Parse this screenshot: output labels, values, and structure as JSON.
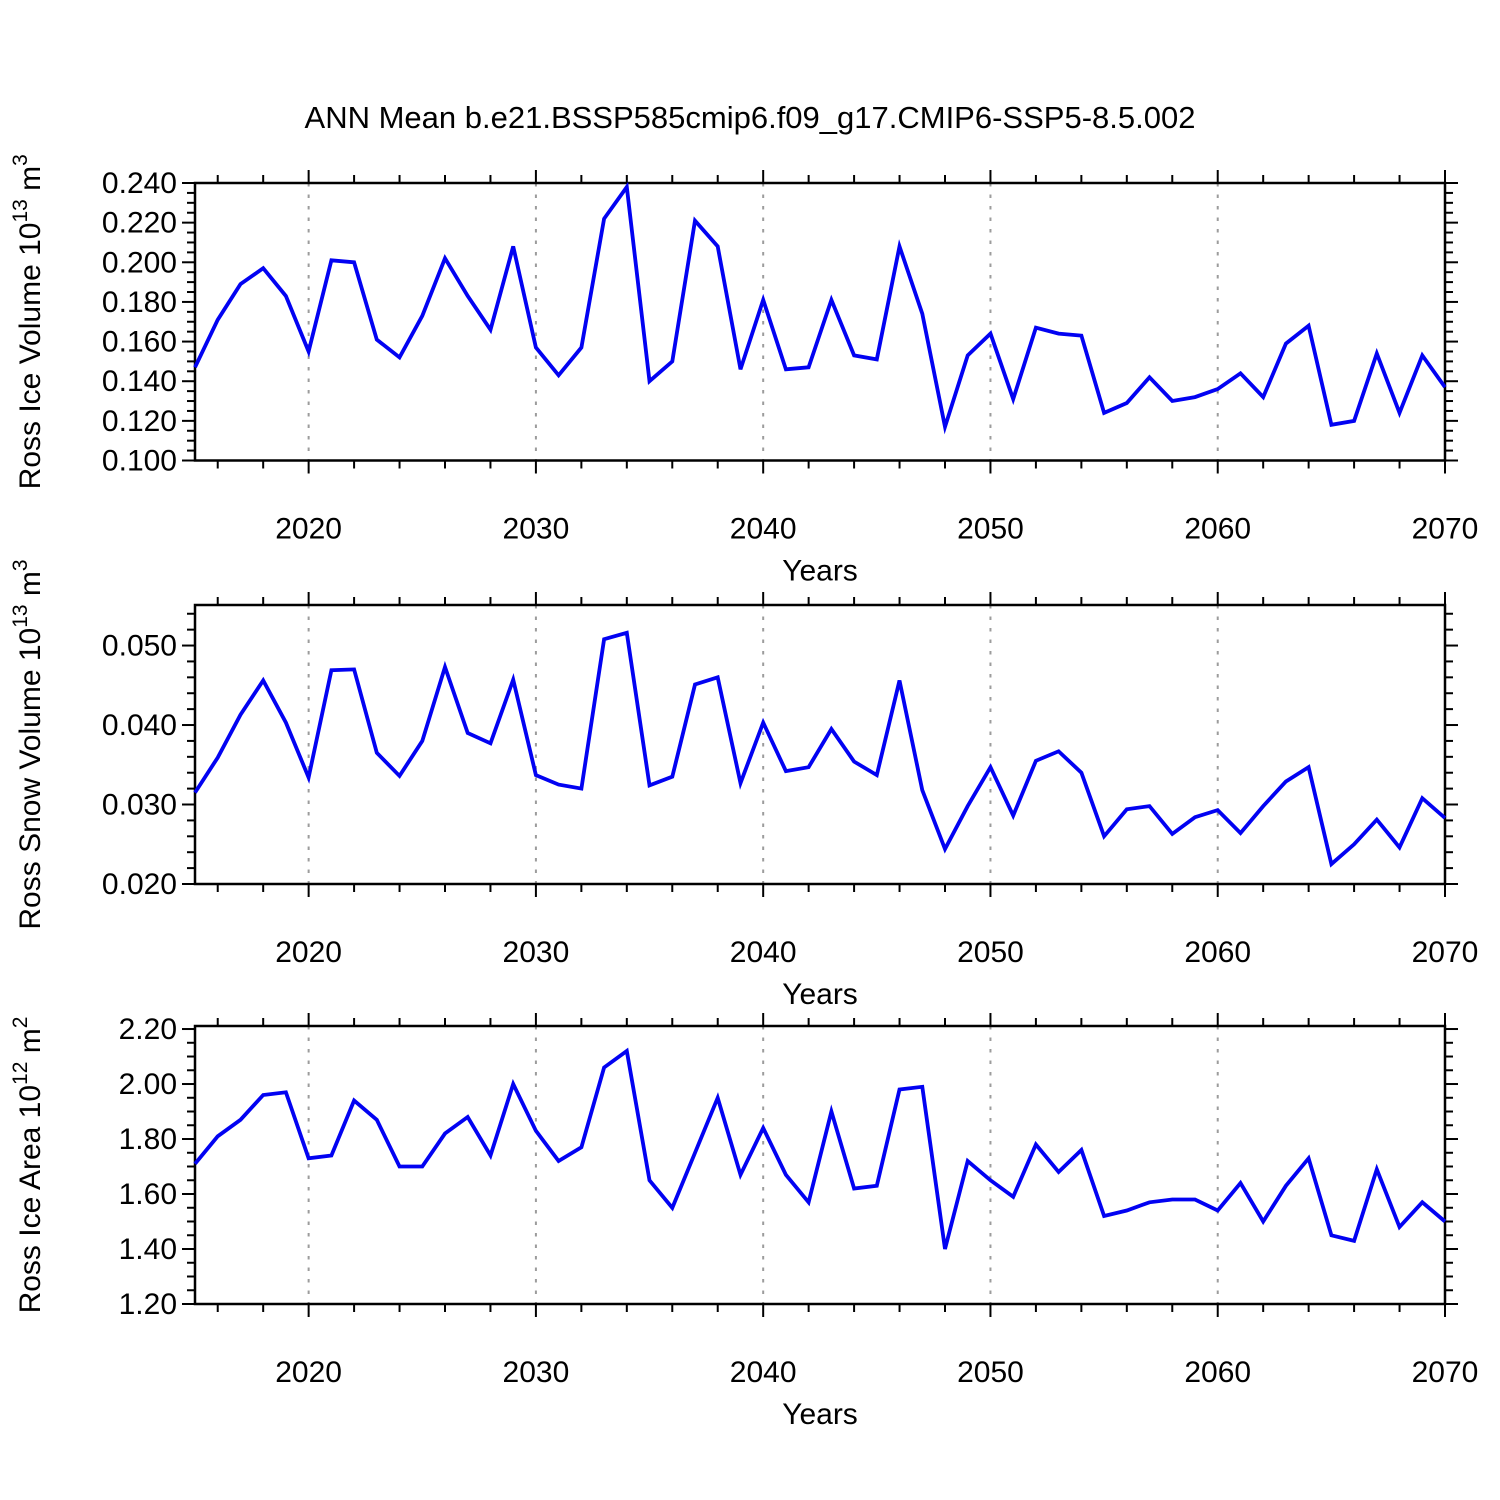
{
  "title": "ANN Mean b.e21.BSSP585cmip6.f09_g17.CMIP6-SSP5-8.5.002",
  "colors": {
    "line": "#0202f2",
    "grid": "#9c9c9c",
    "axis": "#000000",
    "background": "#ffffff",
    "text": "#000000"
  },
  "years": [
    2015,
    2016,
    2017,
    2018,
    2019,
    2020,
    2021,
    2022,
    2023,
    2024,
    2025,
    2026,
    2027,
    2028,
    2029,
    2030,
    2031,
    2032,
    2033,
    2034,
    2035,
    2036,
    2037,
    2038,
    2039,
    2040,
    2041,
    2042,
    2043,
    2044,
    2045,
    2046,
    2047,
    2048,
    2049,
    2050,
    2051,
    2052,
    2053,
    2054,
    2055,
    2056,
    2057,
    2058,
    2059,
    2060,
    2061,
    2062,
    2063,
    2064,
    2065,
    2066,
    2067,
    2068,
    2069,
    2070
  ],
  "x_axis": {
    "label": "Years",
    "range": [
      2015,
      2070
    ],
    "major_ticks": [
      2020,
      2030,
      2040,
      2050,
      2060,
      2070
    ],
    "tick_labels": [
      "2020",
      "2030",
      "2040",
      "2050",
      "2060",
      "2070"
    ],
    "minor_tick_step": 2,
    "grid_lines": [
      2020,
      2030,
      2040,
      2050,
      2060
    ]
  },
  "chart_data": [
    {
      "type": "line",
      "id": "panel-ross-ice-volume",
      "ylabel": "Ross Ice Volume 10^13 m^3",
      "ylabel_parts": [
        {
          "t": "Ross Ice Volume 10"
        },
        {
          "t": "13",
          "sup": true
        },
        {
          "t": " m"
        },
        {
          "t": "3",
          "sup": true
        }
      ],
      "xlabel": "Years",
      "ylim": [
        0.1,
        0.24
      ],
      "yticks": [
        0.1,
        0.12,
        0.14,
        0.16,
        0.18,
        0.2,
        0.22,
        0.24
      ],
      "ytick_labels": [
        "0.100",
        "0.120",
        "0.140",
        "0.160",
        "0.180",
        "0.200",
        "0.220",
        "0.240"
      ],
      "yminor_step": 0.005,
      "values": [
        0.147,
        0.171,
        0.189,
        0.197,
        0.183,
        0.155,
        0.201,
        0.2,
        0.161,
        0.152,
        0.173,
        0.202,
        0.183,
        0.166,
        0.208,
        0.157,
        0.143,
        0.157,
        0.222,
        0.238,
        0.14,
        0.15,
        0.221,
        0.208,
        0.146,
        0.181,
        0.146,
        0.147,
        0.181,
        0.153,
        0.151,
        0.208,
        0.174,
        0.117,
        0.153,
        0.164,
        0.131,
        0.167,
        0.164,
        0.163,
        0.124,
        0.129,
        0.142,
        0.13,
        0.132,
        0.136,
        0.144,
        0.132,
        0.159,
        0.168,
        0.118,
        0.12,
        0.154,
        0.124,
        0.153,
        0.137
      ]
    },
    {
      "type": "line",
      "id": "panel-ross-snow-volume",
      "ylabel": "Ross Snow Volume 10^13 m^3",
      "ylabel_parts": [
        {
          "t": "Ross Snow Volume 10"
        },
        {
          "t": "13",
          "sup": true
        },
        {
          "t": " m"
        },
        {
          "t": "3",
          "sup": true
        }
      ],
      "xlabel": "Years",
      "ylim": [
        0.02,
        0.0551
      ],
      "yticks": [
        0.02,
        0.03,
        0.04,
        0.05
      ],
      "ytick_labels": [
        "0.020",
        "0.030",
        "0.040",
        "0.050"
      ],
      "yminor_step": 0.002,
      "values": [
        0.0315,
        0.0359,
        0.0413,
        0.0456,
        0.0403,
        0.0334,
        0.0469,
        0.047,
        0.0365,
        0.0336,
        0.038,
        0.0473,
        0.039,
        0.0377,
        0.0457,
        0.0337,
        0.0325,
        0.032,
        0.0508,
        0.0516,
        0.0324,
        0.0335,
        0.0451,
        0.046,
        0.0327,
        0.0403,
        0.0342,
        0.0347,
        0.0395,
        0.0354,
        0.0337,
        0.0456,
        0.0318,
        0.0244,
        0.0298,
        0.0347,
        0.0286,
        0.0355,
        0.0367,
        0.034,
        0.026,
        0.0294,
        0.0298,
        0.0263,
        0.0284,
        0.0293,
        0.0264,
        0.0298,
        0.0329,
        0.0347,
        0.0225,
        0.025,
        0.0281,
        0.0246,
        0.0308,
        0.0283
      ]
    },
    {
      "type": "line",
      "id": "panel-ross-ice-area",
      "ylabel": "Ross Ice Area 10^12 m^2",
      "ylabel_parts": [
        {
          "t": "Ross Ice Area 10"
        },
        {
          "t": "12",
          "sup": true
        },
        {
          "t": " m"
        },
        {
          "t": "2",
          "sup": true
        }
      ],
      "xlabel": "Years",
      "ylim": [
        1.2,
        2.211
      ],
      "yticks": [
        1.2,
        1.4,
        1.6,
        1.8,
        2.0,
        2.2
      ],
      "ytick_labels": [
        "1.20",
        "1.40",
        "1.60",
        "1.80",
        "2.00",
        "2.20"
      ],
      "yminor_step": 0.05,
      "values": [
        1.71,
        1.81,
        1.87,
        1.96,
        1.97,
        1.73,
        1.74,
        1.94,
        1.87,
        1.7,
        1.7,
        1.82,
        1.88,
        1.74,
        2.0,
        1.83,
        1.72,
        1.77,
        2.06,
        2.12,
        1.65,
        1.55,
        1.75,
        1.95,
        1.67,
        1.84,
        1.67,
        1.57,
        1.9,
        1.62,
        1.63,
        1.98,
        1.99,
        1.4,
        1.72,
        1.65,
        1.59,
        1.78,
        1.68,
        1.76,
        1.52,
        1.54,
        1.57,
        1.58,
        1.58,
        1.54,
        1.64,
        1.5,
        1.63,
        1.73,
        1.45,
        1.43,
        1.69,
        1.48,
        1.57,
        1.5
      ]
    }
  ]
}
